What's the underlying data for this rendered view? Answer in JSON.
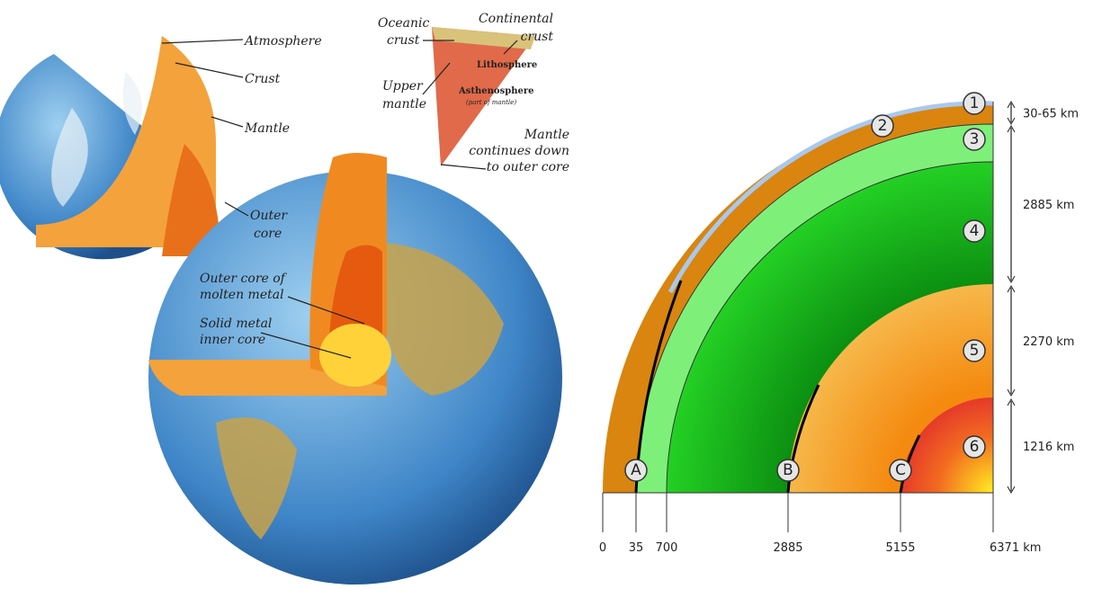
{
  "illustration": {
    "labels": [
      {
        "lines": [
          "Atmosphere"
        ]
      },
      {
        "lines": [
          "Crust"
        ]
      },
      {
        "lines": [
          "Mantle"
        ]
      },
      {
        "lines": [
          "Outer",
          "core"
        ]
      },
      {
        "lines": [
          "Outer core of",
          "molten metal"
        ]
      },
      {
        "lines": [
          "Solid metal",
          "inner core"
        ]
      },
      {
        "lines": [
          "Oceanic",
          "crust"
        ]
      },
      {
        "lines": [
          "Continental",
          "crust"
        ]
      },
      {
        "lines": [
          "Lithosphere"
        ]
      },
      {
        "lines": [
          "Asthenosphere",
          "(part of mantle)"
        ]
      },
      {
        "lines": [
          "Upper",
          "mantle"
        ]
      },
      {
        "lines": [
          "Mantle",
          "continues down",
          "to outer core"
        ]
      }
    ]
  },
  "cross_section": {
    "layer_markers": [
      "1",
      "2",
      "3",
      "4",
      "5",
      "6"
    ],
    "boundary_markers": [
      "A",
      "B",
      "C"
    ],
    "thicknesses": [
      "30-65 km",
      "2885 km",
      "2270 km",
      "1216 km"
    ],
    "depth_axis": [
      "0",
      "35",
      "700",
      "2885",
      "5155",
      "6371 km"
    ]
  }
}
